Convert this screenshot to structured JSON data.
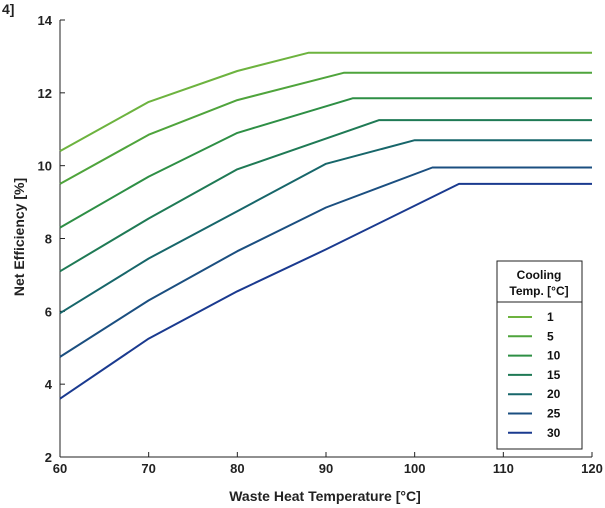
{
  "corner_label": "4]",
  "chart_data": {
    "type": "line",
    "title": "",
    "xlabel": "Waste Heat Temperature [°C]",
    "ylabel": "Net Efficiency [%]",
    "xlim": [
      60,
      120
    ],
    "ylim": [
      2,
      14
    ],
    "xticks": [
      60,
      70,
      80,
      90,
      100,
      110,
      120
    ],
    "yticks": [
      2,
      4,
      6,
      8,
      10,
      12,
      14
    ],
    "grid": false,
    "legend": {
      "title_line1": "Cooling",
      "title_line2": "Temp. [°C]",
      "placement": "bottom-right"
    },
    "series": [
      {
        "name": "1",
        "color": "#6db33f",
        "x": [
          60,
          70,
          80,
          88,
          120
        ],
        "y": [
          10.4,
          11.75,
          12.6,
          13.1,
          13.1
        ]
      },
      {
        "name": "5",
        "color": "#4fa43c",
        "x": [
          60,
          70,
          80,
          92,
          120
        ],
        "y": [
          9.5,
          10.85,
          11.8,
          12.55,
          12.55
        ]
      },
      {
        "name": "10",
        "color": "#2e8f45",
        "x": [
          60,
          70,
          80,
          93,
          120
        ],
        "y": [
          8.3,
          9.7,
          10.9,
          11.85,
          11.85
        ]
      },
      {
        "name": "15",
        "color": "#1f7a55",
        "x": [
          60,
          70,
          80,
          96,
          120
        ],
        "y": [
          7.1,
          8.55,
          9.9,
          11.25,
          11.25
        ]
      },
      {
        "name": "20",
        "color": "#17666a",
        "x": [
          60,
          70,
          80,
          90,
          100,
          120
        ],
        "y": [
          5.95,
          7.45,
          8.75,
          10.05,
          10.7,
          10.7
        ]
      },
      {
        "name": "25",
        "color": "#1b4f80",
        "x": [
          60,
          70,
          80,
          90,
          102,
          120
        ],
        "y": [
          4.75,
          6.3,
          7.65,
          8.85,
          9.95,
          9.95
        ]
      },
      {
        "name": "30",
        "color": "#1a3a8f",
        "x": [
          60,
          70,
          80,
          90,
          105,
          120
        ],
        "y": [
          3.6,
          5.25,
          6.55,
          7.7,
          9.5,
          9.5
        ]
      }
    ]
  }
}
